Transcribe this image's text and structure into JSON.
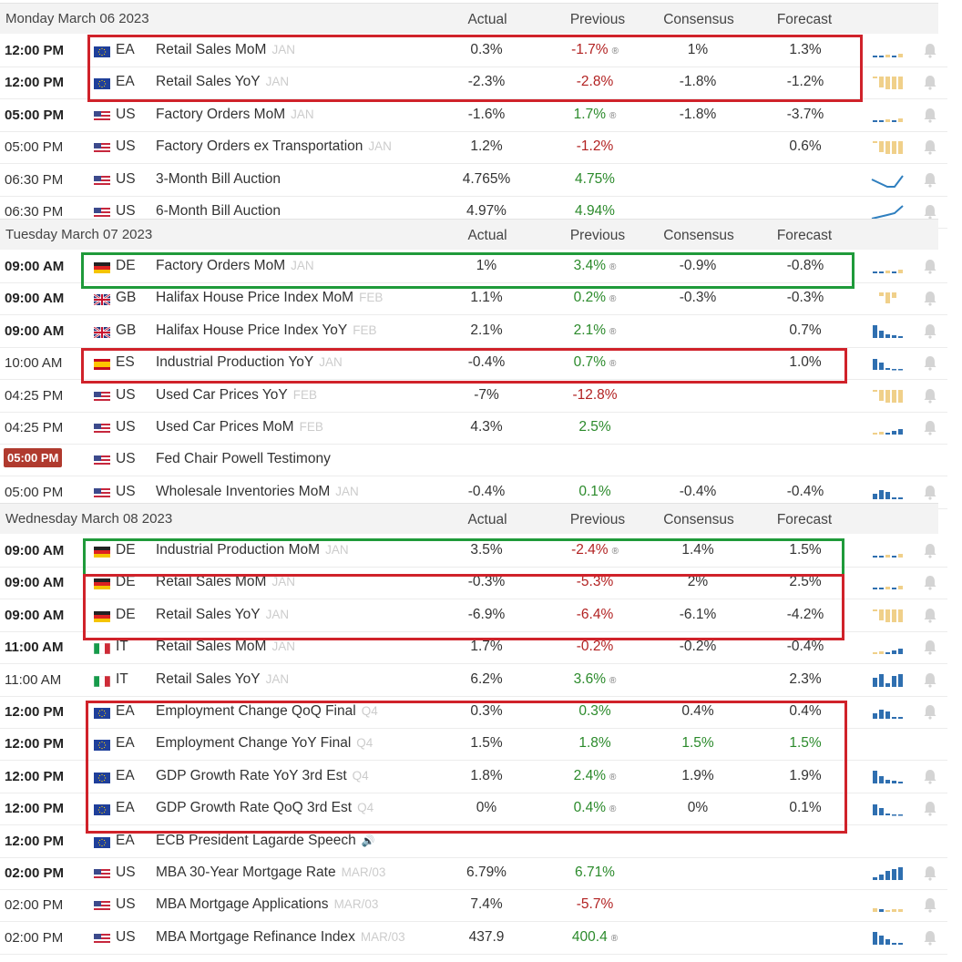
{
  "columns": {
    "actual": "Actual",
    "previous": "Previous",
    "consensus": "Consensus",
    "forecast": "Forecast"
  },
  "colors": {
    "positive": "#2b8a2b",
    "negative": "#b22222",
    "highlight_red": "#d0222a",
    "highlight_green": "#1f9a3a",
    "live_badge": "#b03a2e"
  },
  "icons": {
    "bell": "bell-icon",
    "revision": "revised-icon",
    "speaker": "speaker-icon",
    "chart": "sparkline-icon"
  },
  "days": [
    {
      "label": "Monday March 06 2023",
      "events": [
        {
          "time": "12:00 PM",
          "bold": true,
          "flag": "eu",
          "country": "EA",
          "name": "Retail Sales MoM",
          "ref": "JAN",
          "actual": "0.3%",
          "previous": "-1.7%",
          "prev_color": "neg",
          "revised": true,
          "consensus": "1%",
          "forecast": "1.3%",
          "spark": "mixed",
          "bell": true
        },
        {
          "time": "12:00 PM",
          "bold": true,
          "flag": "eu",
          "country": "EA",
          "name": "Retail Sales YoY",
          "ref": "JAN",
          "actual": "-2.3%",
          "previous": "-2.8%",
          "prev_color": "neg",
          "revised": false,
          "consensus": "-1.8%",
          "forecast": "-1.2%",
          "spark": "down",
          "bell": true
        },
        {
          "time": "05:00 PM",
          "bold": true,
          "flag": "us",
          "country": "US",
          "name": "Factory Orders MoM",
          "ref": "JAN",
          "actual": "-1.6%",
          "previous": "1.7%",
          "prev_color": "pos",
          "revised": true,
          "consensus": "-1.8%",
          "forecast": "-3.7%",
          "spark": "mixed",
          "bell": true
        },
        {
          "time": "05:00 PM",
          "bold": false,
          "flag": "us",
          "country": "US",
          "name": "Factory Orders ex Transportation",
          "ref": "JAN",
          "actual": "1.2%",
          "previous": "-1.2%",
          "prev_color": "neg",
          "revised": false,
          "consensus": "",
          "forecast": "0.6%",
          "spark": "down",
          "bell": true
        },
        {
          "time": "06:30 PM",
          "bold": false,
          "flag": "us",
          "country": "US",
          "name": "3-Month Bill Auction",
          "ref": "",
          "actual": "4.765%",
          "previous": "4.75%",
          "prev_color": "pos",
          "revised": false,
          "consensus": "",
          "forecast": "",
          "spark": "line1",
          "bell": true
        },
        {
          "time": "06:30 PM",
          "bold": false,
          "flag": "us",
          "country": "US",
          "name": "6-Month Bill Auction",
          "ref": "",
          "actual": "4.97%",
          "previous": "4.94%",
          "prev_color": "pos",
          "revised": false,
          "consensus": "",
          "forecast": "",
          "spark": "line2",
          "bell": true
        }
      ]
    },
    {
      "label": "Tuesday March 07 2023",
      "events": [
        {
          "time": "09:00 AM",
          "bold": true,
          "flag": "de",
          "country": "DE",
          "name": "Factory Orders MoM",
          "ref": "JAN",
          "actual": "1%",
          "previous": "3.4%",
          "prev_color": "pos",
          "revised": true,
          "consensus": "-0.9%",
          "forecast": "-0.8%",
          "spark": "mixed",
          "bell": true
        },
        {
          "time": "09:00 AM",
          "bold": true,
          "flag": "gb",
          "country": "GB",
          "name": "Halifax House Price Index MoM",
          "ref": "FEB",
          "actual": "1.1%",
          "previous": "0.2%",
          "prev_color": "pos",
          "revised": true,
          "consensus": "-0.3%",
          "forecast": "-0.3%",
          "spark": "smallneg",
          "bell": true
        },
        {
          "time": "09:00 AM",
          "bold": true,
          "flag": "gb",
          "country": "GB",
          "name": "Halifax House Price Index YoY",
          "ref": "FEB",
          "actual": "2.1%",
          "previous": "2.1%",
          "prev_color": "pos",
          "revised": true,
          "consensus": "",
          "forecast": "0.7%",
          "spark": "upbars",
          "bell": true
        },
        {
          "time": "10:00 AM",
          "bold": false,
          "flag": "es",
          "country": "ES",
          "name": "Industrial Production YoY",
          "ref": "JAN",
          "actual": "-0.4%",
          "previous": "0.7%",
          "prev_color": "pos",
          "revised": true,
          "consensus": "",
          "forecast": "1.0%",
          "spark": "upbars2",
          "bell": true
        },
        {
          "time": "04:25 PM",
          "bold": false,
          "flag": "us",
          "country": "US",
          "name": "Used Car Prices YoY",
          "ref": "FEB",
          "actual": "-7%",
          "previous": "-12.8%",
          "prev_color": "neg",
          "revised": false,
          "consensus": "",
          "forecast": "",
          "spark": "down",
          "bell": true
        },
        {
          "time": "04:25 PM",
          "bold": false,
          "flag": "us",
          "country": "US",
          "name": "Used Car Prices MoM",
          "ref": "FEB",
          "actual": "4.3%",
          "previous": "2.5%",
          "prev_color": "pos",
          "revised": false,
          "consensus": "",
          "forecast": "",
          "spark": "mixed2",
          "bell": true
        },
        {
          "time": "05:00 PM",
          "bold": false,
          "live": true,
          "flag": "us",
          "country": "US",
          "name": "Fed Chair Powell Testimony",
          "ref": "",
          "actual": "",
          "previous": "",
          "prev_color": "",
          "revised": false,
          "consensus": "",
          "forecast": "",
          "spark": "",
          "bell": false
        },
        {
          "time": "05:00 PM",
          "bold": false,
          "flag": "us",
          "country": "US",
          "name": "Wholesale Inventories MoM",
          "ref": "JAN",
          "actual": "-0.4%",
          "previous": "0.1%",
          "prev_color": "pos",
          "revised": false,
          "consensus": "-0.4%",
          "forecast": "-0.4%",
          "spark": "upbars3",
          "bell": true
        }
      ]
    },
    {
      "label": "Wednesday March 08 2023",
      "events": [
        {
          "time": "09:00 AM",
          "bold": true,
          "flag": "de",
          "country": "DE",
          "name": "Industrial Production MoM",
          "ref": "JAN",
          "actual": "3.5%",
          "previous": "-2.4%",
          "prev_color": "neg",
          "revised": true,
          "consensus": "1.4%",
          "forecast": "1.5%",
          "spark": "mixed",
          "bell": true
        },
        {
          "time": "09:00 AM",
          "bold": true,
          "flag": "de",
          "country": "DE",
          "name": "Retail Sales MoM",
          "ref": "JAN",
          "actual": "-0.3%",
          "previous": "-5.3%",
          "prev_color": "neg",
          "revised": false,
          "consensus": "2%",
          "forecast": "2.5%",
          "spark": "mixed",
          "bell": true
        },
        {
          "time": "09:00 AM",
          "bold": true,
          "flag": "de",
          "country": "DE",
          "name": "Retail Sales YoY",
          "ref": "JAN",
          "actual": "-6.9%",
          "previous": "-6.4%",
          "prev_color": "neg",
          "revised": false,
          "consensus": "-6.1%",
          "forecast": "-4.2%",
          "spark": "down",
          "bell": true
        },
        {
          "time": "11:00 AM",
          "bold": true,
          "flag": "it",
          "country": "IT",
          "name": "Retail Sales MoM",
          "ref": "JAN",
          "actual": "1.7%",
          "previous": "-0.2%",
          "prev_color": "neg",
          "revised": false,
          "consensus": "-0.2%",
          "forecast": "-0.4%",
          "spark": "mixed2",
          "bell": true
        },
        {
          "time": "11:00 AM",
          "bold": false,
          "flag": "it",
          "country": "IT",
          "name": "Retail Sales YoY",
          "ref": "JAN",
          "actual": "6.2%",
          "previous": "3.6%",
          "prev_color": "pos",
          "revised": true,
          "consensus": "",
          "forecast": "2.3%",
          "spark": "upbars4",
          "bell": true
        },
        {
          "time": "12:00 PM",
          "bold": true,
          "flag": "eu",
          "country": "EA",
          "name": "Employment Change QoQ Final",
          "ref": "Q4",
          "actual": "0.3%",
          "previous": "0.3%",
          "prev_color": "pos",
          "revised": false,
          "consensus": "0.4%",
          "forecast": "0.4%",
          "spark": "upbars3",
          "bell": true
        },
        {
          "time": "12:00 PM",
          "bold": true,
          "flag": "eu",
          "country": "EA",
          "name": "Employment Change YoY Final",
          "ref": "Q4",
          "actual": "1.5%",
          "previous": "1.8%",
          "prev_color": "pos",
          "revised": false,
          "consensus": "1.5%",
          "consensus_color": "pos",
          "forecast": "1.5%",
          "forecast_color": "pos",
          "spark": "",
          "bell": false
        },
        {
          "time": "12:00 PM",
          "bold": true,
          "flag": "eu",
          "country": "EA",
          "name": "GDP Growth Rate YoY 3rd Est",
          "ref": "Q4",
          "actual": "1.8%",
          "previous": "2.4%",
          "prev_color": "pos",
          "revised": true,
          "consensus": "1.9%",
          "forecast": "1.9%",
          "spark": "upbars",
          "bell": true
        },
        {
          "time": "12:00 PM",
          "bold": true,
          "flag": "eu",
          "country": "EA",
          "name": "GDP Growth Rate QoQ 3rd Est",
          "ref": "Q4",
          "actual": "0%",
          "previous": "0.4%",
          "prev_color": "pos",
          "revised": true,
          "consensus": "0%",
          "forecast": "0.1%",
          "spark": "upbars2",
          "bell": true
        },
        {
          "time": "12:00 PM",
          "bold": true,
          "flag": "eu",
          "country": "EA",
          "name": "ECB President Lagarde Speech",
          "ref": "",
          "speaker": true,
          "actual": "",
          "previous": "",
          "prev_color": "",
          "revised": false,
          "consensus": "",
          "forecast": "",
          "spark": "",
          "bell": false
        },
        {
          "time": "02:00 PM",
          "bold": true,
          "flag": "us",
          "country": "US",
          "name": "MBA 30-Year Mortgage Rate",
          "ref": "MAR/03",
          "actual": "6.79%",
          "previous": "6.71%",
          "prev_color": "pos",
          "revised": false,
          "consensus": "",
          "forecast": "",
          "spark": "rising",
          "bell": true
        },
        {
          "time": "02:00 PM",
          "bold": false,
          "flag": "us",
          "country": "US",
          "name": "MBA Mortgage Applications",
          "ref": "MAR/03",
          "actual": "7.4%",
          "previous": "-5.7%",
          "prev_color": "neg",
          "revised": false,
          "consensus": "",
          "forecast": "",
          "spark": "mixed3",
          "bell": true
        },
        {
          "time": "02:00 PM",
          "bold": false,
          "flag": "us",
          "country": "US",
          "name": "MBA Mortgage Refinance Index",
          "ref": "MAR/03",
          "actual": "437.9",
          "previous": "400.4",
          "prev_color": "pos",
          "revised": true,
          "consensus": "",
          "forecast": "",
          "spark": "upbars5",
          "bell": true
        }
      ]
    }
  ]
}
